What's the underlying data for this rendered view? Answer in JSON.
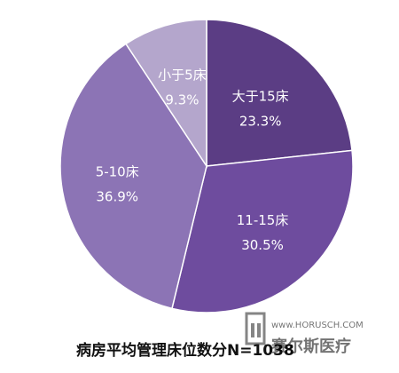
{
  "chart_data": {
    "type": "pie",
    "title": "病房平均管理床位数分N=1038",
    "slices": [
      {
        "label": "大于15床",
        "value": 23.3,
        "value_label": "23.3%",
        "color": "#5b3d84"
      },
      {
        "label": "11-15床",
        "value": 30.5,
        "value_label": "30.5%",
        "color": "#6e4c9e"
      },
      {
        "label": "5-10床",
        "value": 36.9,
        "value_label": "36.9%",
        "color": "#8c74b5"
      },
      {
        "label": "小于5床",
        "value": 9.3,
        "value_label": "9.3%",
        "color": "#b4a6cc"
      }
    ],
    "start": "12 o'clock",
    "direction": "clockwise"
  },
  "watermark": {
    "url": "www.HORUSCH.COM",
    "brand": "赛尔斯医疗"
  }
}
